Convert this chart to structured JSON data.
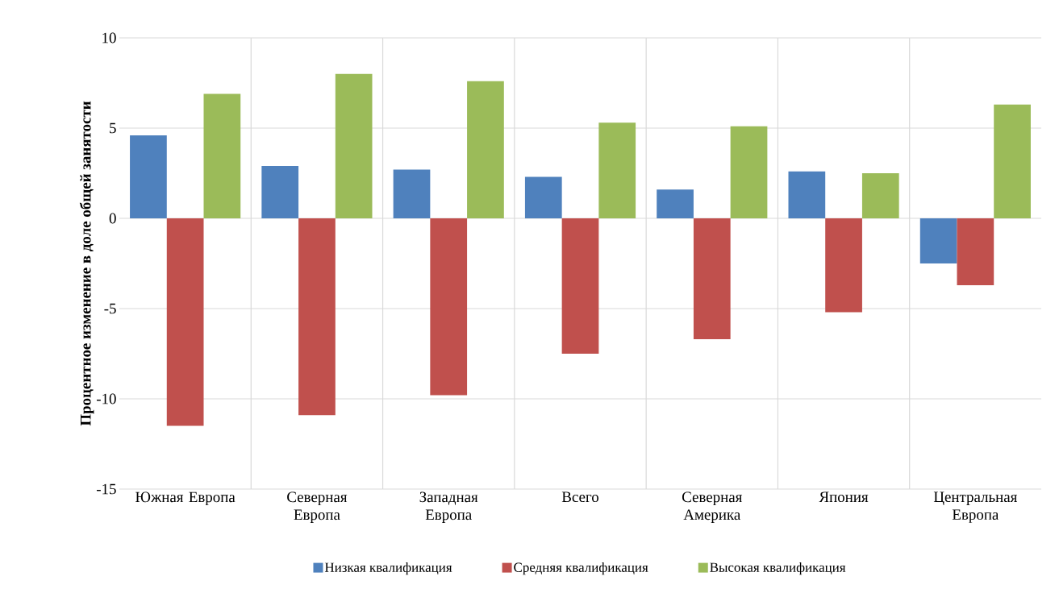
{
  "chart_data": {
    "type": "bar",
    "ylabel": "Процентное изменение в доле общей занятости",
    "categories": [
      "Южная Европа",
      "Северная Европа",
      "Западная Европа",
      "Всего",
      "Северная Америка",
      "Япония",
      "Центральная Европа"
    ],
    "series": [
      {
        "name": "Низкая квалификация",
        "color": "#4f81bd",
        "values": [
          4.6,
          2.9,
          2.7,
          2.3,
          1.6,
          2.6,
          -2.5
        ]
      },
      {
        "name": "Средняя квалификация",
        "color": "#c0504d",
        "values": [
          -11.5,
          -10.9,
          -9.8,
          -7.5,
          -6.7,
          -5.2,
          -3.7
        ]
      },
      {
        "name": "Высокая квалификация",
        "color": "#9bbb59",
        "values": [
          6.9,
          8.0,
          7.6,
          5.3,
          5.1,
          2.5,
          6.3
        ]
      }
    ],
    "ylim": [
      -15,
      10
    ],
    "yticks": [
      -15,
      -10,
      -5,
      0,
      5,
      10
    ],
    "grid": true,
    "legend": "bottom"
  }
}
